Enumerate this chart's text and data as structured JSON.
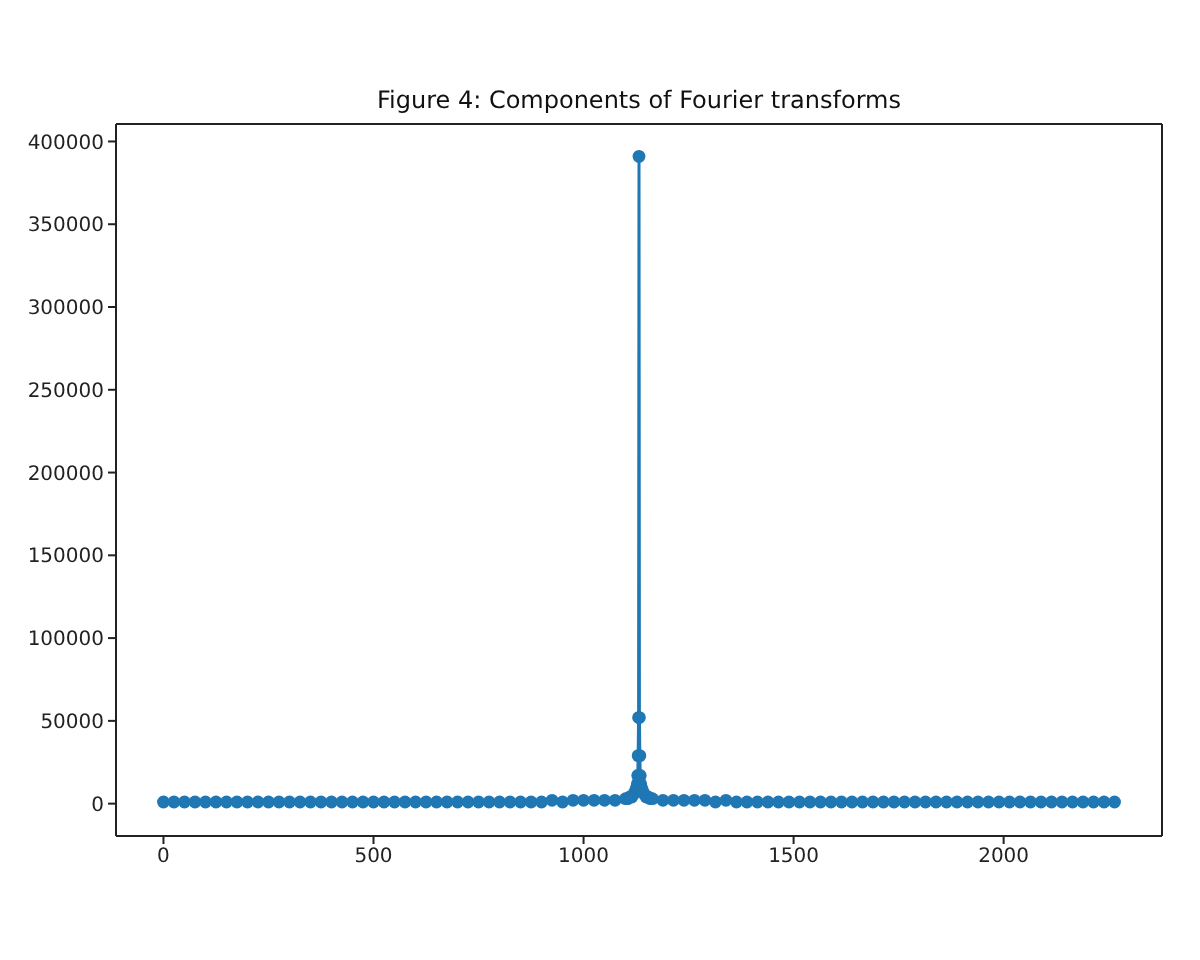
{
  "chart_data": {
    "type": "line",
    "title": "Figure 4: Components of Fourier transforms",
    "x": [
      0,
      25,
      50,
      75,
      100,
      125,
      150,
      175,
      200,
      225,
      250,
      275,
      300,
      325,
      350,
      375,
      400,
      425,
      450,
      475,
      500,
      525,
      550,
      575,
      600,
      625,
      650,
      675,
      700,
      725,
      750,
      775,
      800,
      825,
      850,
      875,
      900,
      925,
      950,
      975,
      1000,
      1025,
      1050,
      1075,
      1100,
      1105,
      1110,
      1115,
      1120,
      1124,
      1126,
      1127,
      1128,
      1129,
      1130,
      1131,
      1132,
      1133,
      1134,
      1135,
      1136,
      1137,
      1138,
      1140,
      1144,
      1149,
      1154,
      1159,
      1164,
      1189,
      1214,
      1239,
      1264,
      1289,
      1314,
      1339,
      1364,
      1389,
      1414,
      1439,
      1464,
      1489,
      1514,
      1539,
      1564,
      1589,
      1614,
      1639,
      1664,
      1689,
      1714,
      1739,
      1764,
      1789,
      1814,
      1839,
      1864,
      1889,
      1914,
      1939,
      1964,
      1989,
      2014,
      2039,
      2064,
      2089,
      2114,
      2139,
      2164,
      2189,
      2214,
      2239,
      2264
    ],
    "series": [
      {
        "color": "#1f77b4",
        "values": [
          1000,
          1000,
          1000,
          1000,
          1000,
          1000,
          1000,
          1000,
          1000,
          1000,
          1000,
          1000,
          1000,
          1000,
          1000,
          1000,
          1000,
          1000,
          1000,
          1000,
          1000,
          1000,
          1000,
          1000,
          1000,
          1000,
          1000,
          1000,
          1000,
          1000,
          1000,
          1000,
          1000,
          1000,
          1000,
          1000,
          1000,
          2000,
          1000,
          2000,
          2000,
          2000,
          2000,
          2000,
          3000,
          3000,
          4000,
          4000,
          6000,
          8000,
          9000,
          10000,
          12000,
          17000,
          29000,
          52000,
          391000,
          52000,
          29000,
          17000,
          12000,
          10000,
          9000,
          8000,
          6000,
          4000,
          4000,
          3000,
          3000,
          2000,
          2000,
          2000,
          2000,
          2000,
          1000,
          2000,
          1000,
          1000,
          1000,
          1000,
          1000,
          1000,
          1000,
          1000,
          1000,
          1000,
          1000,
          1000,
          1000,
          1000,
          1000,
          1000,
          1000,
          1000,
          1000,
          1000,
          1000,
          1000,
          1000,
          1000,
          1000,
          1000,
          1000,
          1000,
          1000,
          1000,
          1000,
          1000,
          1000,
          1000,
          1000,
          1000,
          1000
        ]
      }
    ],
    "xlim": [
      -113,
      2377
    ],
    "xticks": [
      0,
      500,
      1000,
      1500,
      2000
    ],
    "ylim": [
      -19550,
      410550
    ],
    "yticks": [
      0,
      50000,
      100000,
      150000,
      200000,
      250000,
      300000,
      350000,
      400000
    ],
    "marker": "circle",
    "line_style": "solid"
  }
}
